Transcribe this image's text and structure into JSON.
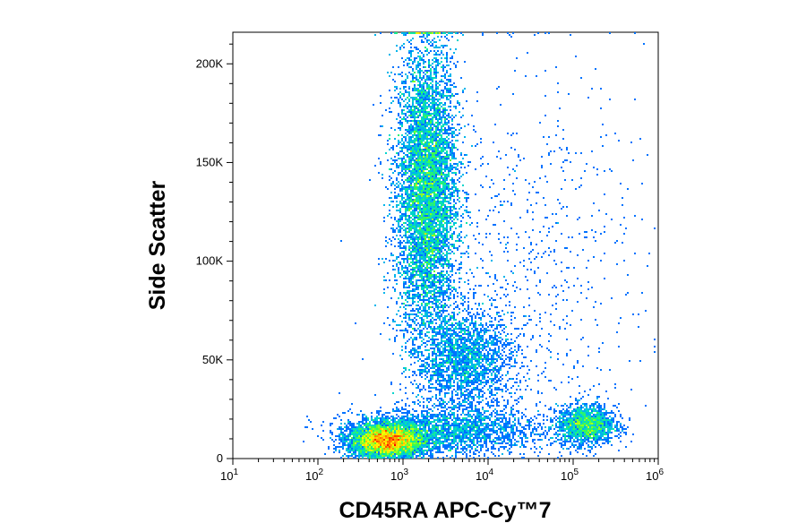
{
  "chart_data": {
    "type": "scatter",
    "title": "",
    "xlabel": "CD45RA APC-Cy™7",
    "ylabel": "Side Scatter",
    "x_scale": "log",
    "y_scale": "linear",
    "xlim": [
      10,
      1000000
    ],
    "ylim": [
      0,
      216000
    ],
    "x_ticks": [
      {
        "value": 10,
        "base": "10",
        "exp": "1"
      },
      {
        "value": 100,
        "base": "10",
        "exp": "2"
      },
      {
        "value": 1000,
        "base": "10",
        "exp": "3"
      },
      {
        "value": 10000,
        "base": "10",
        "exp": "4"
      },
      {
        "value": 100000,
        "base": "10",
        "exp": "5"
      },
      {
        "value": 1000000,
        "base": "10",
        "exp": "6"
      }
    ],
    "y_ticks": [
      {
        "value": 0,
        "label": "0"
      },
      {
        "value": 50000,
        "label": "50K"
      },
      {
        "value": 100000,
        "label": "100K"
      },
      {
        "value": 150000,
        "label": "150K"
      },
      {
        "value": 200000,
        "label": "200K"
      }
    ],
    "grid": false,
    "legend": "none",
    "color_scale": [
      "#0000ff",
      "#00a0ff",
      "#00e0c0",
      "#40ff40",
      "#ffff00",
      "#ff8000",
      "#ff0000"
    ],
    "populations": [
      {
        "center_x": 1900,
        "center_y": 135000,
        "spread_log_x": 0.18,
        "spread_y": 38000,
        "weight": 0.42
      },
      {
        "center_x": 650,
        "center_y": 9000,
        "spread_log_x": 0.22,
        "spread_y": 4500,
        "weight": 0.26
      },
      {
        "center_x": 3500,
        "center_y": 14000,
        "spread_log_x": 0.55,
        "spread_y": 6000,
        "weight": 0.1
      },
      {
        "center_x": 140000,
        "center_y": 17000,
        "spread_log_x": 0.17,
        "spread_y": 5000,
        "weight": 0.08
      },
      {
        "center_x": 5500,
        "center_y": 50000,
        "spread_log_x": 0.28,
        "spread_y": 13000,
        "weight": 0.1
      },
      {
        "center_x": 25000,
        "center_y": 90000,
        "spread_log_x": 0.7,
        "spread_y": 55000,
        "weight": 0.04
      }
    ],
    "event_count": 22000
  }
}
